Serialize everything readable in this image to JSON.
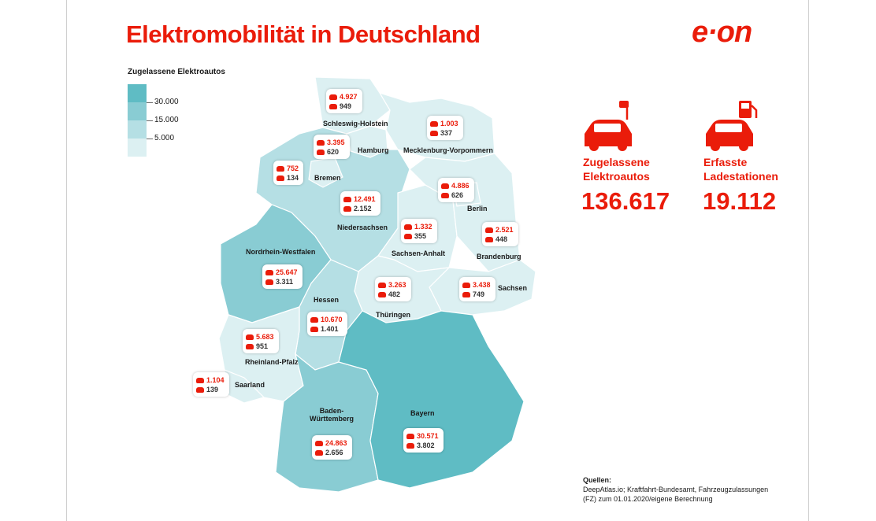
{
  "title": "Elektromobilität in Deutschland",
  "logo": "e·on",
  "legend": {
    "title": "Zugelassene Elektroautos",
    "ticks": [
      "30.000",
      "15.000",
      "5.000"
    ],
    "colors": [
      "#5fbcc4",
      "#89ccd3",
      "#b5dfe4",
      "#dcf0f2"
    ]
  },
  "states": [
    {
      "name": "Schleswig-Holstein",
      "cars": "4.927",
      "stations": "949"
    },
    {
      "name": "Hamburg",
      "cars": "3.395",
      "stations": "620"
    },
    {
      "name": "Mecklenburg-Vorpommern",
      "cars": "1.003",
      "stations": "337"
    },
    {
      "name": "Bremen",
      "cars": "752",
      "stations": "134"
    },
    {
      "name": "Niedersachsen",
      "cars": "12.491",
      "stations": "2.152"
    },
    {
      "name": "Berlin",
      "cars": "4.886",
      "stations": "626"
    },
    {
      "name": "Sachsen-Anhalt",
      "cars": "1.332",
      "stations": "355"
    },
    {
      "name": "Brandenburg",
      "cars": "2.521",
      "stations": "448"
    },
    {
      "name": "Nordrhein-Westfalen",
      "cars": "25.647",
      "stations": "3.311"
    },
    {
      "name": "Hessen",
      "cars": "10.670",
      "stations": "1.401"
    },
    {
      "name": "Thüringen",
      "cars": "3.263",
      "stations": "482"
    },
    {
      "name": "Sachsen",
      "cars": "3.438",
      "stations": "749"
    },
    {
      "name": "Rheinland-Pfalz",
      "cars": "5.683",
      "stations": "951"
    },
    {
      "name": "Saarland",
      "cars": "1.104",
      "stations": "139"
    },
    {
      "name": "Baden-Württemberg",
      "cars": "24.863",
      "stations": "2.656"
    },
    {
      "name": "Bayern",
      "cars": "30.571",
      "stations": "3.802"
    }
  ],
  "stats": {
    "cars_label_1": "Zugelassene",
    "cars_label_2": "Elektroautos",
    "cars_value": "136.617",
    "stations_label_1": "Erfasste",
    "stations_label_2": "Ladestationen",
    "stations_value": "19.112",
    "accent": "#ea1c0a"
  },
  "sources": {
    "heading": "Quellen:",
    "line1": "DeepAtlas.io; Kraftfahrt-Bundesamt, Fahrzeugzulassungen",
    "line2": "(FZ) zum 01.01.2020/eigene Berechnung"
  }
}
